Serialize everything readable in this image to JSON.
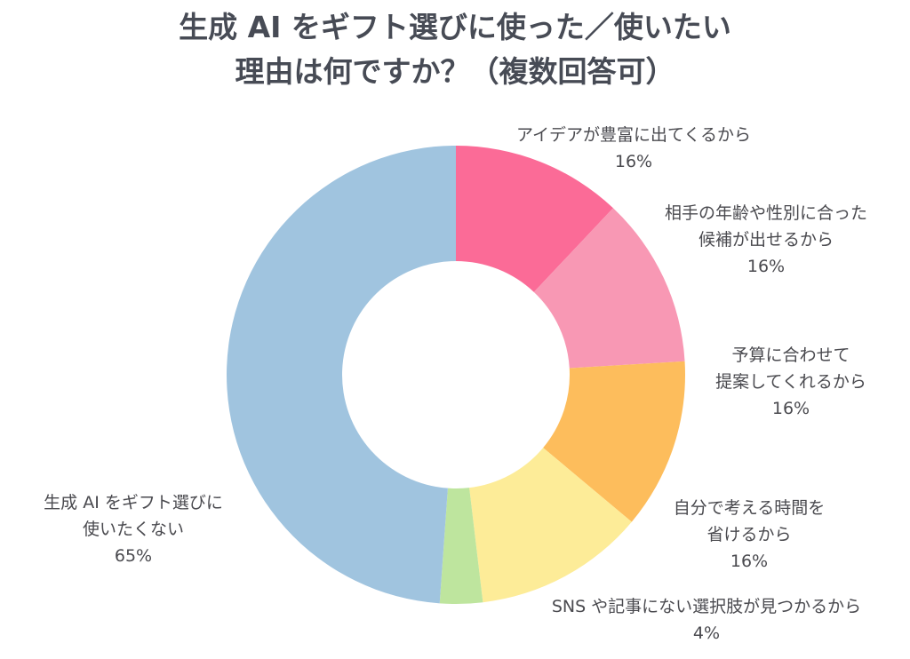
{
  "chart_data": {
    "type": "pie",
    "title": [
      "生成 AI をギフト選びに使った／使いたい",
      "理由は何ですか？（複数回答可）"
    ],
    "slices": [
      {
        "label": [
          "アイデアが豊富に出てくるから"
        ],
        "value_label": "16%",
        "value": 16,
        "color": "#fb6b97"
      },
      {
        "label": [
          "相手の年齢や性別に合った",
          "候補が出せるから"
        ],
        "value_label": "16%",
        "value": 16,
        "color": "#f898b4"
      },
      {
        "label": [
          "予算に合わせて",
          "提案してくれるから"
        ],
        "value_label": "16%",
        "value": 16,
        "color": "#fdbd5c"
      },
      {
        "label": [
          "自分で考える時間を",
          "省けるから"
        ],
        "value_label": "16%",
        "value": 16,
        "color": "#fdec98"
      },
      {
        "label": [
          "SNS や記事にない選択肢が見つかるから"
        ],
        "value_label": "4%",
        "value": 4,
        "color": "#bee59e"
      },
      {
        "label": [
          "生成 AI をギフト選びに",
          "使いたくない"
        ],
        "value_label": "65%",
        "value": 65,
        "color": "#a0c4df"
      }
    ]
  }
}
